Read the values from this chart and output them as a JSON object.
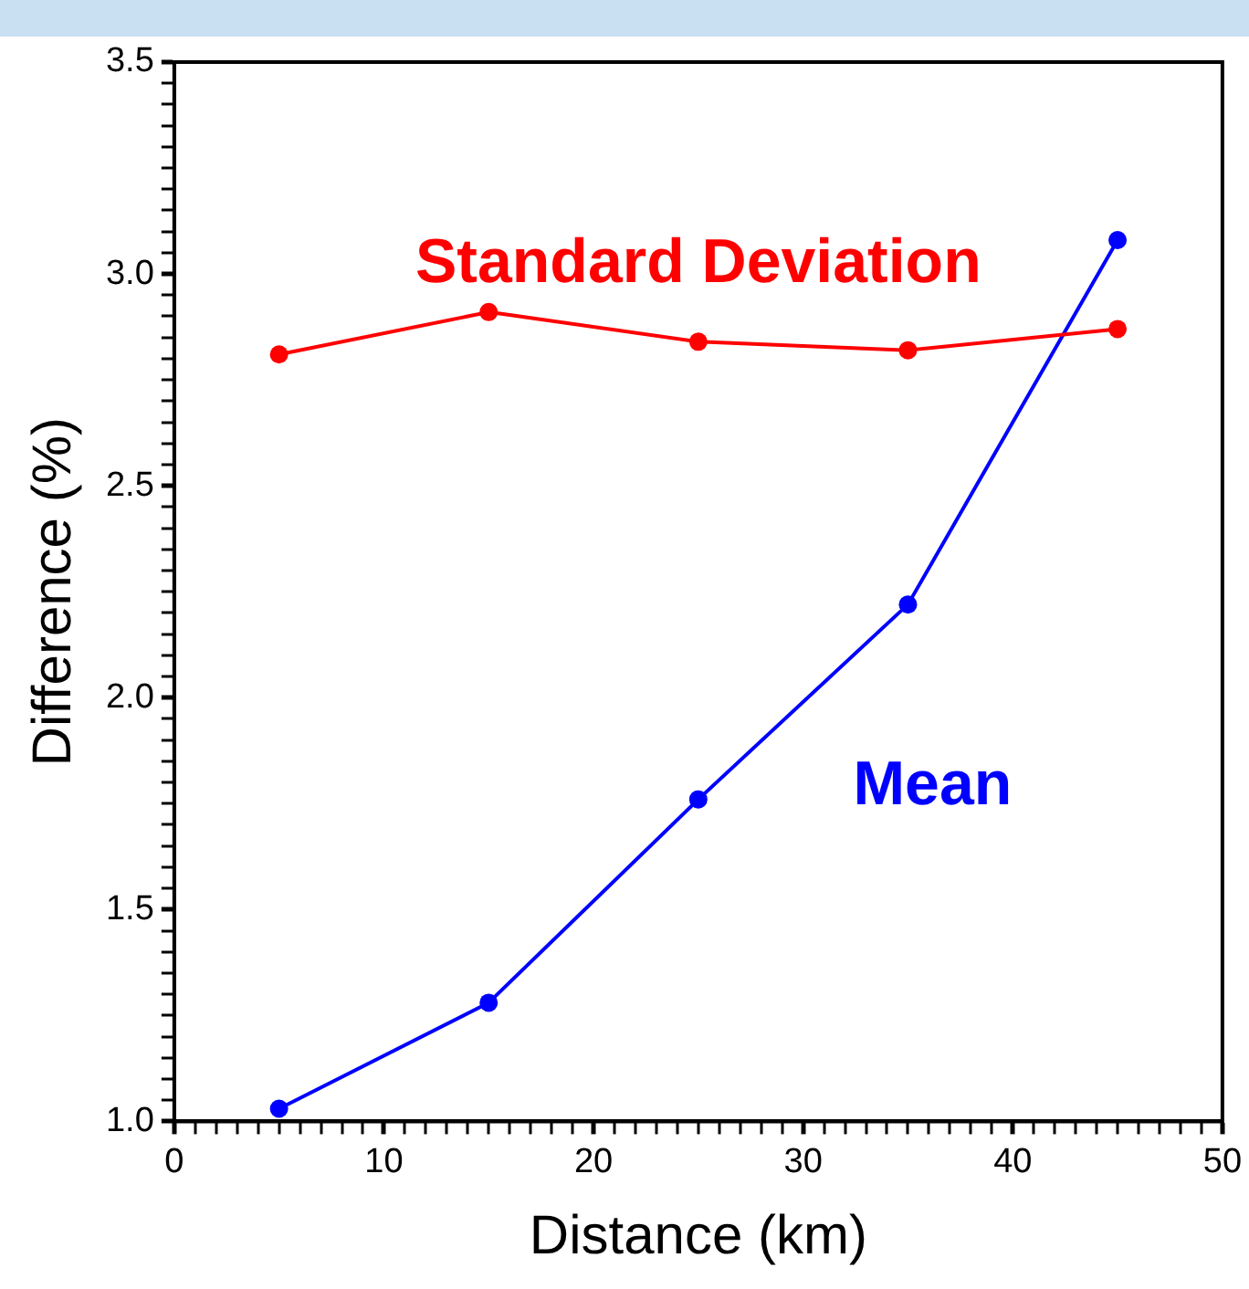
{
  "chart_data": {
    "type": "line",
    "xlabel": "Distance (km)",
    "ylabel": "Difference (%)",
    "x": [
      5,
      15,
      25,
      35,
      45
    ],
    "series": [
      {
        "name": "Standard Deviation",
        "color": "#ff0000",
        "values": [
          2.81,
          2.91,
          2.84,
          2.82,
          2.87
        ]
      },
      {
        "name": "Mean",
        "color": "#0000ff",
        "values": [
          1.03,
          1.28,
          1.76,
          2.22,
          3.08
        ]
      }
    ],
    "xlim": [
      0,
      50
    ],
    "ylim": [
      1,
      3.5
    ],
    "xticks": [
      0,
      {
        "value": 1,
        "label": null
      },
      {
        "value": 2,
        "label": null
      },
      {
        "value": 3,
        "label": null
      },
      {
        "value": 4,
        "label": null
      },
      {
        "value": 5,
        "label": null
      },
      {
        "value": 6,
        "label": null
      },
      {
        "value": 7,
        "label": null
      },
      {
        "value": 8,
        "label": null
      },
      {
        "value": 9,
        "label": null
      },
      10,
      {
        "value": 11,
        "label": null
      },
      {
        "value": 12,
        "label": null
      },
      {
        "value": 13,
        "label": null
      },
      {
        "value": 14,
        "label": null
      },
      {
        "value": 15,
        "label": null
      },
      {
        "value": 16,
        "label": null
      },
      {
        "value": 17,
        "label": null
      },
      {
        "value": 18,
        "label": null
      },
      {
        "value": 19,
        "label": null
      },
      20,
      {
        "value": 21,
        "label": null
      },
      {
        "value": 22,
        "label": null
      },
      {
        "value": 23,
        "label": null
      },
      {
        "value": 24,
        "label": null
      },
      {
        "value": 25,
        "label": null
      },
      {
        "value": 26,
        "label": null
      },
      {
        "value": 27,
        "label": null
      },
      {
        "value": 28,
        "label": null
      },
      {
        "value": 29,
        "label": null
      },
      30,
      {
        "value": 31,
        "label": null
      },
      {
        "value": 32,
        "label": null
      },
      {
        "value": 33,
        "label": null
      },
      {
        "value": 34,
        "label": null
      },
      {
        "value": 35,
        "label": null
      },
      {
        "value": 36,
        "label": null
      },
      {
        "value": 37,
        "label": null
      },
      {
        "value": 38,
        "label": null
      },
      {
        "value": 39,
        "label": null
      },
      40,
      {
        "value": 41,
        "label": null
      },
      {
        "value": 42,
        "label": null
      },
      {
        "value": 43,
        "label": null
      },
      {
        "value": 44,
        "label": null
      },
      {
        "value": 45,
        "label": null
      },
      {
        "value": 46,
        "label": null
      },
      {
        "value": 47,
        "label": null
      },
      {
        "value": 48,
        "label": null
      },
      {
        "value": 49,
        "label": null
      },
      50
    ],
    "yticks": [
      {
        "value": 1,
        "label": "1.0"
      },
      {
        "value": 1.05,
        "label": null
      },
      {
        "value": 1.1,
        "label": null
      },
      {
        "value": 1.15,
        "label": null
      },
      {
        "value": 1.2,
        "label": null
      },
      {
        "value": 1.25,
        "label": null
      },
      {
        "value": 1.3,
        "label": null
      },
      {
        "value": 1.35,
        "label": null
      },
      {
        "value": 1.4,
        "label": null
      },
      {
        "value": 1.45,
        "label": null
      },
      1.5,
      {
        "value": 1.55,
        "label": null
      },
      {
        "value": 1.6,
        "label": null
      },
      {
        "value": 1.65,
        "label": null
      },
      {
        "value": 1.7,
        "label": null
      },
      {
        "value": 1.75,
        "label": null
      },
      {
        "value": 1.8,
        "label": null
      },
      {
        "value": 1.85,
        "label": null
      },
      {
        "value": 1.9,
        "label": null
      },
      {
        "value": 1.95,
        "label": null
      },
      {
        "value": 2,
        "label": "2.0"
      },
      {
        "value": 2.05,
        "label": null
      },
      {
        "value": 2.1,
        "label": null
      },
      {
        "value": 2.15,
        "label": null
      },
      {
        "value": 2.2,
        "label": null
      },
      {
        "value": 2.25,
        "label": null
      },
      {
        "value": 2.3,
        "label": null
      },
      {
        "value": 2.35,
        "label": null
      },
      {
        "value": 2.4,
        "label": null
      },
      {
        "value": 2.45,
        "label": null
      },
      2.5,
      {
        "value": 2.55,
        "label": null
      },
      {
        "value": 2.6,
        "label": null
      },
      {
        "value": 2.65,
        "label": null
      },
      {
        "value": 2.7,
        "label": null
      },
      {
        "value": 2.75,
        "label": null
      },
      {
        "value": 2.8,
        "label": null
      },
      {
        "value": 2.85,
        "label": null
      },
      {
        "value": 2.9,
        "label": null
      },
      {
        "value": 2.95,
        "label": null
      },
      {
        "value": 3,
        "label": "3.0"
      },
      {
        "value": 3.05,
        "label": null
      },
      {
        "value": 3.1,
        "label": null
      },
      {
        "value": 3.15,
        "label": null
      },
      {
        "value": 3.2,
        "label": null
      },
      {
        "value": 3.25,
        "label": null
      },
      {
        "value": 3.3,
        "label": null
      },
      {
        "value": 3.35,
        "label": null
      },
      {
        "value": 3.4,
        "label": null
      },
      {
        "value": 3.45,
        "label": null
      },
      3.5
    ],
    "grid": false,
    "legend": false,
    "marker": "circle",
    "line_style": "solid"
  }
}
